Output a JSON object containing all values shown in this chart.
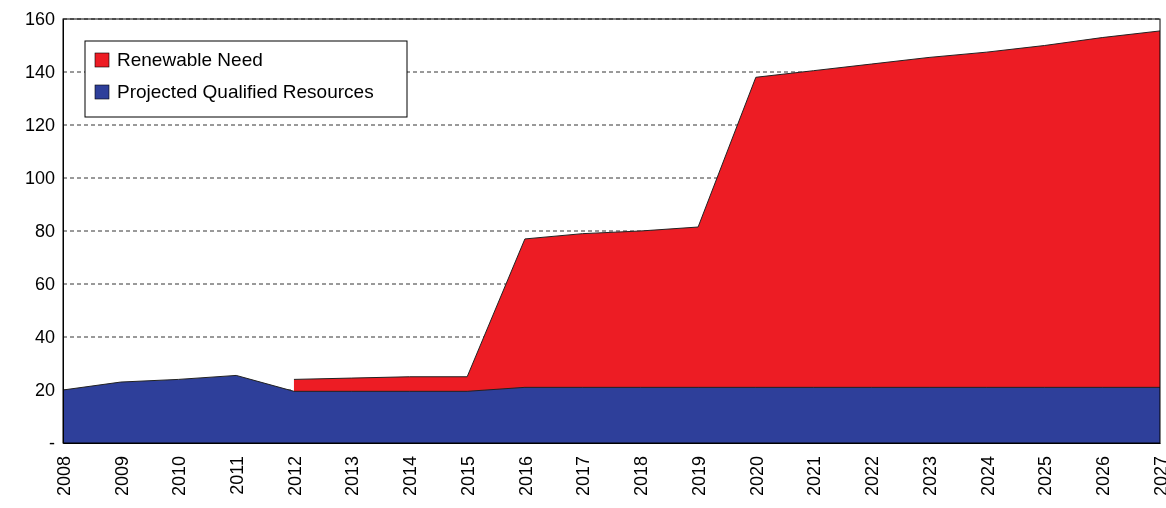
{
  "chart_data": {
    "type": "area",
    "categories": [
      "2008",
      "2009",
      "2010",
      "2011",
      "2012",
      "2013",
      "2014",
      "2015",
      "2016",
      "2017",
      "2018",
      "2019",
      "2020",
      "2021",
      "2022",
      "2023",
      "2024",
      "2025",
      "2026",
      "2027"
    ],
    "series": [
      {
        "name": "Renewable Need",
        "color": "#ed1c24",
        "values": [
          null,
          null,
          null,
          null,
          24,
          24.5,
          25,
          25,
          77,
          79,
          80,
          81.5,
          138,
          140.5,
          143,
          145.5,
          147.5,
          150,
          153,
          155.5
        ]
      },
      {
        "name": "Projected Qualified Resources",
        "color": "#2e3f9a",
        "values": [
          20,
          23,
          24,
          25.5,
          19.5,
          19.5,
          19.5,
          19.5,
          21,
          21,
          21,
          21,
          21,
          21,
          21,
          21,
          21,
          21,
          21,
          21
        ]
      }
    ],
    "ylim": [
      0,
      160
    ],
    "yticks": [
      {
        "value": 0,
        "label": "-"
      },
      20,
      40,
      60,
      80,
      100,
      120,
      140,
      160
    ],
    "grid": "y",
    "legend": "top left"
  }
}
